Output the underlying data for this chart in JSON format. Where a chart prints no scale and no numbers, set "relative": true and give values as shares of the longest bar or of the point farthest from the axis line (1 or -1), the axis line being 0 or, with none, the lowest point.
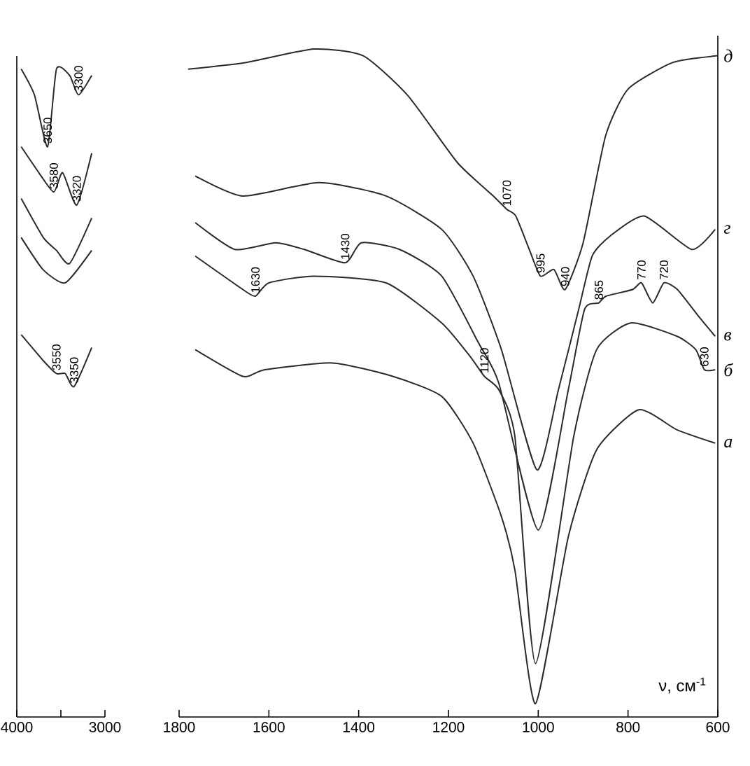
{
  "chart_data": [
    {
      "type": "line",
      "relative": true,
      "xlim": [
        4000,
        3000
      ],
      "xticks": [
        4000,
        {
          "value": 3500,
          "label": null
        },
        3000
      ],
      "series": [
        {
          "color": "#2a2a2a",
          "x": [
            3950,
            3700,
            3550,
            3450,
            3350,
            3150
          ],
          "values": [
            0.59,
            0.55,
            0.53,
            0.53,
            0.51,
            0.57
          ]
        },
        {
          "color": "#2a2a2a",
          "x": [
            3950,
            3700,
            3450,
            3150
          ],
          "values": [
            0.74,
            0.69,
            0.67,
            0.72
          ]
        },
        {
          "color": "#2a2a2a",
          "x": [
            3950,
            3700,
            3550,
            3400,
            3150
          ],
          "values": [
            0.8,
            0.74,
            0.72,
            0.7,
            0.77
          ]
        },
        {
          "color": "#2a2a2a",
          "x": [
            3950,
            3750,
            3580,
            3480,
            3320,
            3150
          ],
          "values": [
            0.88,
            0.84,
            0.81,
            0.84,
            0.79,
            0.87
          ]
        },
        {
          "color": "#2a2a2a",
          "x": [
            3950,
            3800,
            3650,
            3550,
            3400,
            3300,
            3150
          ],
          "values": [
            1.0,
            0.96,
            0.88,
            1.0,
            0.99,
            0.96,
            0.99
          ]
        }
      ],
      "annotations": [
        {
          "text": "3650",
          "x": 3650,
          "y": 0.88
        },
        {
          "text": "3300",
          "x": 3300,
          "y": 0.96
        },
        {
          "text": "3580",
          "x": 3580,
          "y": 0.81
        },
        {
          "text": "3320",
          "x": 3320,
          "y": 0.79
        },
        {
          "text": "3550",
          "x": 3550,
          "y": 0.53
        },
        {
          "text": "3350",
          "x": 3350,
          "y": 0.51
        }
      ]
    },
    {
      "type": "line",
      "relative": true,
      "xlim": [
        1800,
        600
      ],
      "xticks": [
        1800,
        1600,
        1400,
        1200,
        1000,
        800,
        600
      ],
      "xlabel": "ν, см$^{-1}$",
      "series": [
        {
          "name": "а",
          "color": "#2a2a2a",
          "x": [
            1764,
            1658,
            1609,
            1458,
            1324,
            1215,
            1145,
            1082,
            1052,
            1006,
            933,
            870,
            776,
            691,
            606
          ],
          "values": [
            0.55,
            0.51,
            0.52,
            0.53,
            0.51,
            0.48,
            0.41,
            0.3,
            0.22,
            0.02,
            0.27,
            0.4,
            0.46,
            0.43,
            0.41
          ]
        },
        {
          "name": "б",
          "color": "#2a2a2a",
          "x": [
            1764,
            1658,
            1630,
            1600,
            1500,
            1339,
            1215,
            1152,
            1120,
            1088,
            1052,
            1006,
            921,
            870,
            794,
            691,
            649,
            630,
            606
          ],
          "values": [
            0.69,
            0.64,
            0.63,
            0.65,
            0.66,
            0.65,
            0.59,
            0.54,
            0.51,
            0.49,
            0.42,
            0.08,
            0.42,
            0.55,
            0.59,
            0.57,
            0.55,
            0.52,
            0.52
          ]
        },
        {
          "name": "в",
          "color": "#2a2a2a",
          "x": [
            1764,
            1676,
            1585,
            1521,
            1430,
            1394,
            1309,
            1215,
            1133,
            1088,
            1000,
            933,
            897,
            865,
            849,
            790,
            770,
            745,
            720,
            690,
            643,
            606
          ],
          "values": [
            0.74,
            0.7,
            0.71,
            0.7,
            0.68,
            0.71,
            0.7,
            0.66,
            0.56,
            0.5,
            0.28,
            0.49,
            0.61,
            0.62,
            0.63,
            0.64,
            0.65,
            0.62,
            0.65,
            0.64,
            0.6,
            0.57
          ]
        },
        {
          "name": "г",
          "color": "#2a2a2a",
          "x": [
            1764,
            1658,
            1488,
            1339,
            1215,
            1145,
            1082,
            1003,
            955,
            910,
            880,
            840,
            764,
            658,
            606
          ],
          "values": [
            0.81,
            0.78,
            0.8,
            0.78,
            0.73,
            0.66,
            0.55,
            0.37,
            0.49,
            0.61,
            0.69,
            0.72,
            0.75,
            0.7,
            0.73
          ]
        },
        {
          "name": "д",
          "color": "#2a2a2a",
          "x": [
            1780,
            1650,
            1500,
            1390,
            1290,
            1180,
            1100,
            1070,
            1050,
            1020,
            995,
            965,
            940,
            900,
            850,
            800,
            700,
            600
          ],
          "values": [
            0.97,
            0.98,
            1.0,
            0.99,
            0.93,
            0.83,
            0.78,
            0.76,
            0.75,
            0.7,
            0.66,
            0.67,
            0.64,
            0.71,
            0.87,
            0.94,
            0.98,
            0.99
          ]
        }
      ],
      "annotations": [
        {
          "text": "1630",
          "x": 1630,
          "y": 0.63
        },
        {
          "text": "1430",
          "x": 1430,
          "y": 0.68
        },
        {
          "text": "1070",
          "x": 1070,
          "y": 0.76
        },
        {
          "text": "1120",
          "x": 1120,
          "y": 0.51
        },
        {
          "text": "995",
          "x": 995,
          "y": 0.66
        },
        {
          "text": "940",
          "x": 940,
          "y": 0.64
        },
        {
          "text": "865",
          "x": 865,
          "y": 0.62
        },
        {
          "text": "770",
          "x": 770,
          "y": 0.65
        },
        {
          "text": "720",
          "x": 720,
          "y": 0.65
        },
        {
          "text": "630",
          "x": 630,
          "y": 0.52
        }
      ]
    }
  ]
}
